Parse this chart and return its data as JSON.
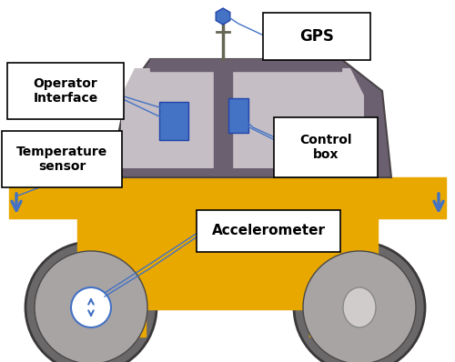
{
  "fig_width": 5.0,
  "fig_height": 3.98,
  "dpi": 100,
  "bg_color": "#ffffff",
  "yellow": "#E8A800",
  "cab_color": "#6B6070",
  "window_color": "#C5BEC5",
  "wheel_dark": "#6A6868",
  "wheel_mid": "#A8A4A4",
  "wheel_light": "#D0CCCC",
  "blue": "#4472C4",
  "white": "#ffffff",
  "black": "#000000",
  "line_color": "#4472C4",
  "labels": {
    "gps": "GPS",
    "operator": "Operator\nInterface",
    "temp": "Temperature\nsensor",
    "control": "Control\nbox",
    "accel": "Accelerometer"
  }
}
